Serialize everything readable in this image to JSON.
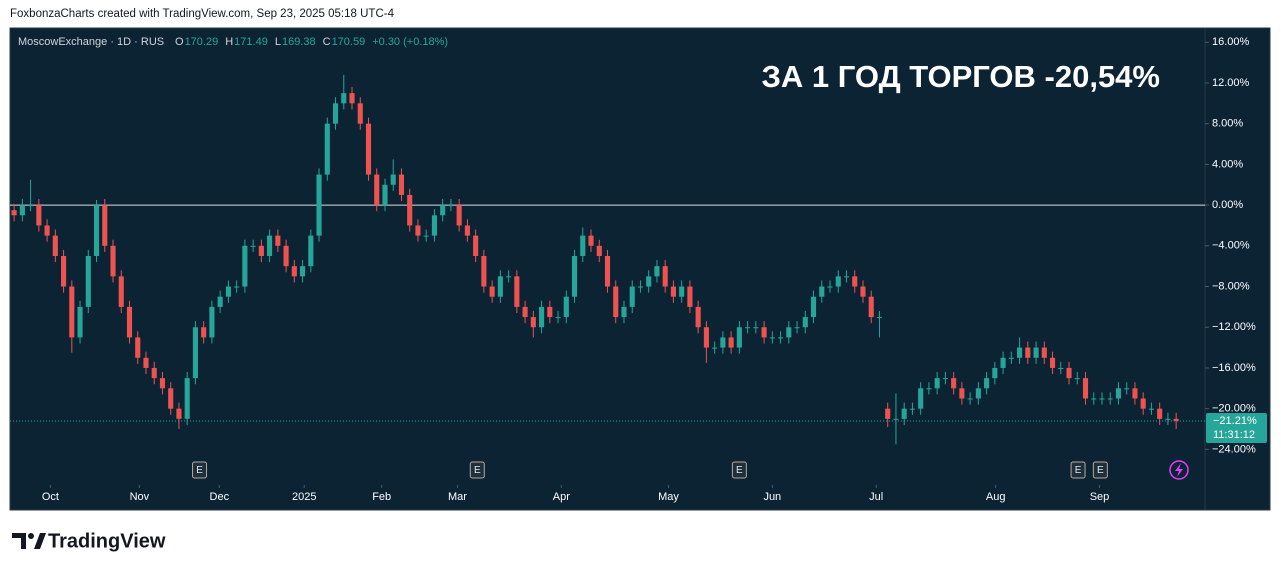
{
  "header": "FoxbonzaCharts created with TradingView.com, Sep 23, 2025 05:18 UTC-4",
  "footer": {
    "brand": "TradingView"
  },
  "chart_data": {
    "type": "candlestick",
    "title": "ЗА 1 ГОД ТОРГОВ -20,54%",
    "legend": {
      "symbol": "MoscowExchange · 1D · RUS",
      "items": [
        {
          "key": "O",
          "value": "170.29"
        },
        {
          "key": "H",
          "value": "171.49"
        },
        {
          "key": "L",
          "value": "169.38"
        },
        {
          "key": "C",
          "value": "170.59"
        }
      ],
      "change": "+0.30 (+0.18%)"
    },
    "up_color": "#26a69a",
    "down_color": "#ef5350",
    "xlim": [
      -0.5,
      144.5
    ],
    "ylim": [
      -27.5,
      17.4
    ],
    "xticks": [
      {
        "value": 4.4,
        "label": "Oct"
      },
      {
        "value": 15.2,
        "label": "Nov"
      },
      {
        "value": 24.9,
        "label": "Dec"
      },
      {
        "value": 35.2,
        "label": "2025"
      },
      {
        "value": 44.6,
        "label": "Feb"
      },
      {
        "value": 53.8,
        "label": "Mar"
      },
      {
        "value": 66.4,
        "label": "Apr"
      },
      {
        "value": 79.4,
        "label": "May"
      },
      {
        "value": 92,
        "label": "Jun"
      },
      {
        "value": 104.6,
        "label": "Jul"
      },
      {
        "value": 119.1,
        "label": "Aug"
      },
      {
        "value": 131.7,
        "label": "Sep"
      }
    ],
    "yticks": [
      {
        "value": 16,
        "label": "16.00%"
      },
      {
        "value": 12,
        "label": "12.00%"
      },
      {
        "value": 8,
        "label": "8.00%"
      },
      {
        "value": 4,
        "label": "4.00%"
      },
      {
        "value": 0,
        "label": "0.00%"
      },
      {
        "value": -4,
        "label": "−4.00%"
      },
      {
        "value": -8,
        "label": "−8.00%"
      },
      {
        "value": -12,
        "label": "−12.00%"
      },
      {
        "value": -16,
        "label": "−16.00%"
      },
      {
        "value": -20,
        "label": "−20.00%"
      },
      {
        "value": -24,
        "label": "−24.00%"
      }
    ],
    "baseline": 0,
    "last": {
      "value": -21.21,
      "label": "−21.21%",
      "countdown": "11:31:12"
    },
    "events": [
      {
        "x": 22.5,
        "label": "E"
      },
      {
        "x": 56.2,
        "label": "E"
      },
      {
        "x": 88,
        "label": "E"
      },
      {
        "x": 129.1,
        "label": "E"
      },
      {
        "x": 131.8,
        "label": "E"
      }
    ],
    "ohlc": [
      [
        -0.5,
        0.1,
        -1.6,
        -1
      ],
      [
        -1,
        0.6,
        -1.6,
        0
      ],
      [
        0,
        2.5,
        -0.6,
        0
      ],
      [
        0,
        0.6,
        -2.6,
        -2
      ],
      [
        -2,
        -1.4,
        -3.6,
        -3
      ],
      [
        -3,
        -2.4,
        -5.6,
        -5
      ],
      [
        -5,
        -4.4,
        -8.6,
        -8
      ],
      [
        -8,
        -7.4,
        -14.5,
        -13
      ],
      [
        -13,
        -9.4,
        -13.6,
        -10
      ],
      [
        -10,
        -4.4,
        -10.6,
        -5
      ],
      [
        -5,
        0.5,
        -5.6,
        0
      ],
      [
        0,
        0.6,
        -4.6,
        -4
      ],
      [
        -4,
        -3.4,
        -7.6,
        -7
      ],
      [
        -7,
        -6.4,
        -10.6,
        -10
      ],
      [
        -10,
        -9.4,
        -13.6,
        -13
      ],
      [
        -13,
        -12.4,
        -15.6,
        -15
      ],
      [
        -15,
        -14.4,
        -16.6,
        -16
      ],
      [
        -16,
        -15.4,
        -17.6,
        -17
      ],
      [
        -17,
        -16.4,
        -18.6,
        -18
      ],
      [
        -18,
        -17.4,
        -20.6,
        -20
      ],
      [
        -20,
        -19.4,
        -22,
        -21
      ],
      [
        -21,
        -16.4,
        -21.6,
        -17
      ],
      [
        -17,
        -11.4,
        -17.6,
        -12
      ],
      [
        -12,
        -11.4,
        -13.6,
        -13
      ],
      [
        -13,
        -9.4,
        -13.6,
        -10
      ],
      [
        -10,
        -8.4,
        -10.6,
        -9
      ],
      [
        -9,
        -7.4,
        -9.6,
        -8
      ],
      [
        -8,
        -7.4,
        -8.6,
        -8
      ],
      [
        -8,
        -3.4,
        -8.6,
        -4
      ],
      [
        -4,
        -3.4,
        -4.6,
        -4
      ],
      [
        -4,
        -3.4,
        -5.6,
        -5
      ],
      [
        -5,
        -2.4,
        -5.6,
        -3
      ],
      [
        -3,
        -2.4,
        -4.6,
        -4
      ],
      [
        -4,
        -3.4,
        -6.6,
        -6
      ],
      [
        -6,
        -5.4,
        -7.6,
        -7
      ],
      [
        -7,
        -5.4,
        -7.6,
        -6
      ],
      [
        -6,
        -2.4,
        -6.6,
        -3
      ],
      [
        -3,
        3.6,
        -3.6,
        3
      ],
      [
        3,
        8.6,
        2.4,
        8
      ],
      [
        8,
        10.6,
        7.4,
        10
      ],
      [
        10,
        12.8,
        9.4,
        11
      ],
      [
        11,
        11.6,
        9.4,
        10
      ],
      [
        10,
        10.6,
        7.4,
        8
      ],
      [
        8,
        8.6,
        2.4,
        3
      ],
      [
        3,
        3.6,
        -0.6,
        0
      ],
      [
        0,
        2.6,
        -0.6,
        2
      ],
      [
        2,
        4.5,
        1.4,
        3
      ],
      [
        3,
        3.6,
        0.4,
        1
      ],
      [
        1,
        1.6,
        -2.6,
        -2
      ],
      [
        -2,
        -1.4,
        -3.6,
        -3
      ],
      [
        -3,
        -2.4,
        -3.6,
        -3
      ],
      [
        -3,
        -0.4,
        -3.6,
        -1
      ],
      [
        -1,
        0.6,
        -1.6,
        0
      ],
      [
        0,
        0.6,
        -0.6,
        0
      ],
      [
        0,
        0.6,
        -2.6,
        -2
      ],
      [
        -2,
        -1.4,
        -3.6,
        -3
      ],
      [
        -3,
        -2.4,
        -5.6,
        -5
      ],
      [
        -5,
        -4.4,
        -8.6,
        -8
      ],
      [
        -8,
        -7.4,
        -9.6,
        -9
      ],
      [
        -9,
        -6.4,
        -9.6,
        -7
      ],
      [
        -7,
        -6.4,
        -7.6,
        -7
      ],
      [
        -7,
        -6.4,
        -10.6,
        -10
      ],
      [
        -10,
        -9.4,
        -11.6,
        -11
      ],
      [
        -11,
        -10.4,
        -13,
        -12
      ],
      [
        -12,
        -9.4,
        -12.6,
        -10
      ],
      [
        -10,
        -9.4,
        -11.6,
        -11
      ],
      [
        -11,
        -10.4,
        -11.6,
        -11
      ],
      [
        -11,
        -8.4,
        -11.6,
        -9
      ],
      [
        -9,
        -4.4,
        -9.6,
        -5
      ],
      [
        -5,
        -2.2,
        -5.6,
        -3
      ],
      [
        -3,
        -2.4,
        -4.6,
        -4
      ],
      [
        -4,
        -3.4,
        -5.6,
        -5
      ],
      [
        -5,
        -4.4,
        -8.6,
        -8
      ],
      [
        -8,
        -7.4,
        -11.6,
        -11
      ],
      [
        -11,
        -9.4,
        -11.6,
        -10
      ],
      [
        -10,
        -7.4,
        -10.6,
        -8
      ],
      [
        -8,
        -7.4,
        -8.6,
        -8
      ],
      [
        -8,
        -6.4,
        -8.6,
        -7
      ],
      [
        -7,
        -5.4,
        -7.6,
        -6
      ],
      [
        -6,
        -5.4,
        -8.6,
        -8
      ],
      [
        -8,
        -7.4,
        -9.6,
        -9
      ],
      [
        -9,
        -7.4,
        -9.6,
        -8
      ],
      [
        -8,
        -7.4,
        -10.6,
        -10
      ],
      [
        -10,
        -9.4,
        -12.6,
        -12
      ],
      [
        -12,
        -11.4,
        -15.5,
        -14
      ],
      [
        -14,
        -13.4,
        -14.6,
        -14
      ],
      [
        -14,
        -12.4,
        -14.6,
        -13
      ],
      [
        -13,
        -12.4,
        -14.6,
        -14
      ],
      [
        -14,
        -11.4,
        -14.6,
        -12
      ],
      [
        -12,
        -11.4,
        -12.6,
        -12
      ],
      [
        -12,
        -11.4,
        -12.6,
        -12
      ],
      [
        -12,
        -11.4,
        -13.6,
        -13
      ],
      [
        -13,
        -12.4,
        -13.6,
        -13
      ],
      [
        -13,
        -12.4,
        -13.6,
        -13
      ],
      [
        -13,
        -11.4,
        -13.6,
        -12
      ],
      [
        -12,
        -11.4,
        -12.6,
        -12
      ],
      [
        -12,
        -10.4,
        -12.6,
        -11
      ],
      [
        -11,
        -8.4,
        -11.6,
        -9
      ],
      [
        -9,
        -7.4,
        -9.6,
        -8
      ],
      [
        -8,
        -7.4,
        -8.6,
        -8
      ],
      [
        -8,
        -6.4,
        -8.6,
        -7
      ],
      [
        -7,
        -6.4,
        -7.6,
        -7
      ],
      [
        -7,
        -6.4,
        -8.6,
        -8
      ],
      [
        -8,
        -7.4,
        -9.6,
        -9
      ],
      [
        -9,
        -8.4,
        -11.6,
        -11
      ],
      [
        -11,
        -10.4,
        -13,
        -11
      ],
      [
        -20,
        -19.4,
        -21.8,
        -21
      ],
      [
        -21,
        -18.5,
        -23.5,
        -21
      ],
      [
        -21,
        -19.4,
        -21.6,
        -20
      ],
      [
        -20,
        -19.4,
        -20.6,
        -20
      ],
      [
        -20,
        -17.4,
        -20.6,
        -18
      ],
      [
        -18,
        -17.4,
        -18.6,
        -18
      ],
      [
        -18,
        -16.4,
        -18.6,
        -17
      ],
      [
        -17,
        -16.4,
        -17.6,
        -17
      ],
      [
        -17,
        -16.4,
        -18.6,
        -18
      ],
      [
        -18,
        -17.4,
        -19.6,
        -19
      ],
      [
        -19,
        -18.4,
        -19.6,
        -19
      ],
      [
        -19,
        -17.4,
        -19.6,
        -18
      ],
      [
        -18,
        -16.4,
        -18.6,
        -17
      ],
      [
        -17,
        -15.4,
        -17.6,
        -16
      ],
      [
        -16,
        -14.4,
        -16.6,
        -15
      ],
      [
        -15,
        -14.4,
        -15.6,
        -15
      ],
      [
        -15,
        -13,
        -15.6,
        -14
      ],
      [
        -14,
        -13.4,
        -15.6,
        -15
      ],
      [
        -15,
        -13.4,
        -15.6,
        -14
      ],
      [
        -14,
        -13.4,
        -15.6,
        -15
      ],
      [
        -15,
        -14.4,
        -16.6,
        -16
      ],
      [
        -16,
        -15.4,
        -16.6,
        -16
      ],
      [
        -16,
        -15.4,
        -17.6,
        -17
      ],
      [
        -17,
        -16.4,
        -17.6,
        -17
      ],
      [
        -17,
        -16.4,
        -19.6,
        -19
      ],
      [
        -19,
        -18.4,
        -19.6,
        -19
      ],
      [
        -19,
        -18.4,
        -19.6,
        -19
      ],
      [
        -19,
        -18.4,
        -19.6,
        -19
      ],
      [
        -19,
        -17.4,
        -19.6,
        -18
      ],
      [
        -18,
        -17.4,
        -18.6,
        -18
      ],
      [
        -18,
        -17.4,
        -19.6,
        -19
      ],
      [
        -19,
        -18.4,
        -20.6,
        -20
      ],
      [
        -20,
        -19.4,
        -20.6,
        -20
      ],
      [
        -20,
        -19.4,
        -21.6,
        -21
      ],
      [
        -21,
        -20.4,
        -21.6,
        -21
      ],
      [
        -21,
        -20.4,
        -22,
        -21.21
      ]
    ]
  }
}
